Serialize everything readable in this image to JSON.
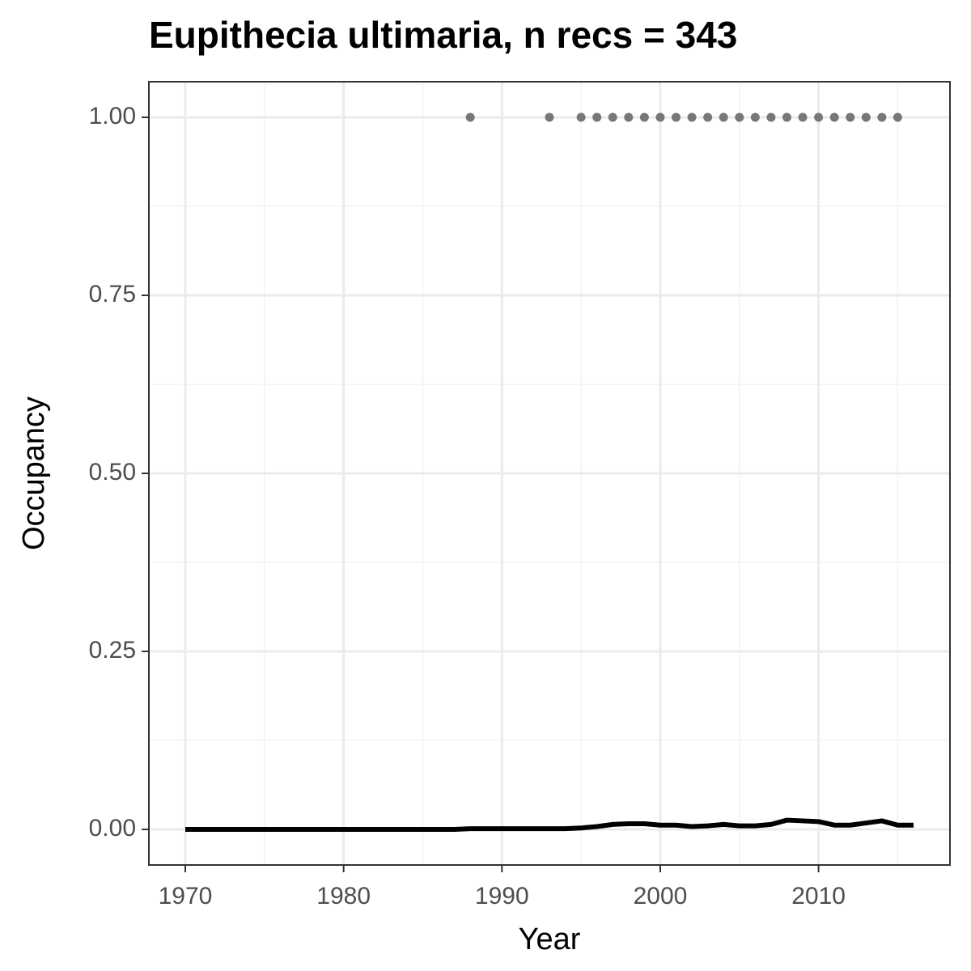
{
  "chart_data": {
    "type": "line",
    "title": "Eupithecia ultimaria, n recs = 343",
    "x_label": "Year",
    "y_label": "Occupancy",
    "xlim": [
      1967.7,
      2018.3
    ],
    "ylim": [
      -0.05,
      1.05
    ],
    "xticks": [
      1970,
      1980,
      1990,
      2000,
      2010
    ],
    "x_minor_ticks": [
      1975,
      1985,
      1995,
      2005,
      2015
    ],
    "yticks": [
      {
        "value": 0,
        "label": "0.00"
      },
      {
        "value": 0.25,
        "label": "0.25"
      },
      {
        "value": 0.5,
        "label": "0.50"
      },
      {
        "value": 0.75,
        "label": "0.75"
      },
      {
        "value": 1,
        "label": "1.00"
      }
    ],
    "y_minor_ticks": [
      0.125,
      0.375,
      0.625,
      0.875
    ],
    "grid": true,
    "series": [
      {
        "style": "points",
        "color": "#777777",
        "x": [
          1988,
          1993,
          1995,
          1996,
          1997,
          1998,
          1999,
          2000,
          2001,
          2002,
          2003,
          2004,
          2005,
          2006,
          2007,
          2008,
          2009,
          2010,
          2011,
          2012,
          2013,
          2014,
          2015
        ],
        "values": [
          1,
          1,
          1,
          1,
          1,
          1,
          1,
          1,
          1,
          1,
          1,
          1,
          1,
          1,
          1,
          1,
          1,
          1,
          1,
          1,
          1,
          1,
          1
        ]
      },
      {
        "style": "line",
        "color": "#000000",
        "x": [
          1970,
          1971,
          1972,
          1973,
          1974,
          1975,
          1976,
          1977,
          1978,
          1979,
          1980,
          1981,
          1982,
          1983,
          1984,
          1985,
          1986,
          1987,
          1988,
          1989,
          1990,
          1991,
          1992,
          1993,
          1994,
          1995,
          1996,
          1997,
          1998,
          1999,
          2000,
          2001,
          2002,
          2003,
          2004,
          2005,
          2006,
          2007,
          2008,
          2009,
          2010,
          2011,
          2012,
          2013,
          2014,
          2015,
          2016
        ],
        "values": [
          0,
          0,
          0,
          0,
          0,
          0,
          0,
          0,
          0,
          0,
          0,
          0,
          0,
          0,
          0,
          0,
          0,
          0,
          0.001,
          0.001,
          0.001,
          0.001,
          0.001,
          0.001,
          0.001,
          0.002,
          0.004,
          0.007,
          0.008,
          0.008,
          0.006,
          0.006,
          0.004,
          0.005,
          0.007,
          0.005,
          0.005,
          0.007,
          0.013,
          0.012,
          0.011,
          0.006,
          0.006,
          0.009,
          0.012,
          0.006,
          0.006
        ]
      }
    ]
  }
}
